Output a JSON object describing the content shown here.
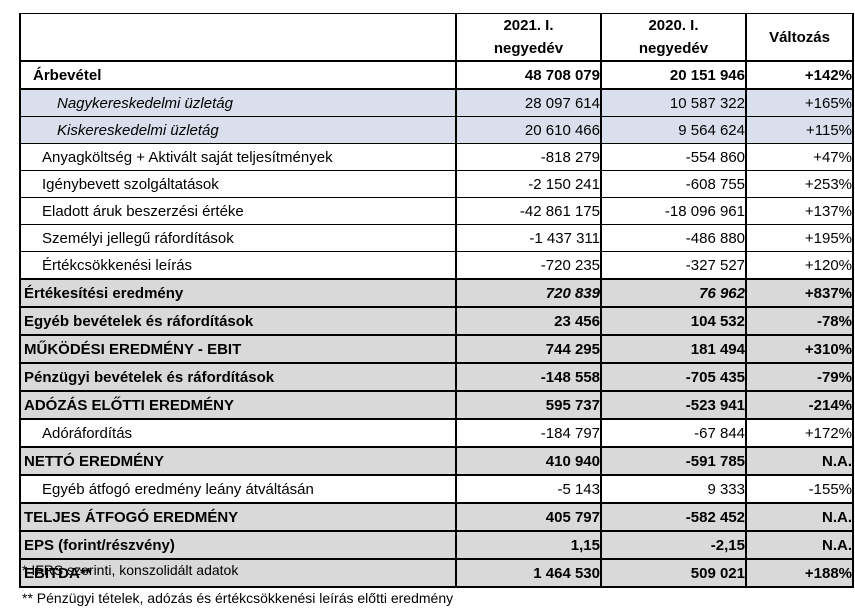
{
  "table": {
    "header": {
      "col_2021": {
        "line1": "2021. I.",
        "line2": "negyedév"
      },
      "col_2020": {
        "line1": "2020. I.",
        "line2": "negyedév"
      },
      "col_change": "Változás"
    },
    "rows": [
      {
        "label": "Árbevétel",
        "q1_2021": "48 708 079",
        "q1_2020": "20 151 946",
        "change": "+142%"
      },
      {
        "label": "Nagykereskedelmi üzletág",
        "q1_2021": "28 097 614",
        "q1_2020": "10 587 322",
        "change": "+165%"
      },
      {
        "label": "Kiskereskedelmi üzletág",
        "q1_2021": "20 610 466",
        "q1_2020": "9 564 624",
        "change": "+115%"
      },
      {
        "label": "Anyagköltség + Aktivált saját teljesítmények",
        "q1_2021": "-818 279",
        "q1_2020": "-554 860",
        "change": "+47%"
      },
      {
        "label": "Igénybevett szolgáltatások",
        "q1_2021": "-2 150 241",
        "q1_2020": "-608 755",
        "change": "+253%"
      },
      {
        "label": "Eladott áruk beszerzési értéke",
        "q1_2021": "-42 861 175",
        "q1_2020": "-18 096 961",
        "change": "+137%"
      },
      {
        "label": "Személyi jellegű ráfordítások",
        "q1_2021": "-1 437 311",
        "q1_2020": "-486 880",
        "change": "+195%"
      },
      {
        "label": "Értékcsökkenési leírás",
        "q1_2021": "-720 235",
        "q1_2020": "-327 527",
        "change": "+120%"
      },
      {
        "label": "Értékesítési eredmény",
        "q1_2021": "720 839",
        "q1_2020": "76 962",
        "change": "+837%"
      },
      {
        "label": "Egyéb bevételek és ráfordítások",
        "q1_2021": "23 456",
        "q1_2020": "104 532",
        "change": "-78%"
      },
      {
        "label": "MŰKÖDÉSI EREDMÉNY - EBIT",
        "q1_2021": "744 295",
        "q1_2020": "181 494",
        "change": "+310%"
      },
      {
        "label": "Pénzügyi bevételek és ráfordítások",
        "q1_2021": "-148 558",
        "q1_2020": "-705 435",
        "change": "-79%"
      },
      {
        "label": "ADÓZÁS ELŐTTI EREDMÉNY",
        "q1_2021": "595 737",
        "q1_2020": "-523 941",
        "change": "-214%"
      },
      {
        "label": "Adóráfordítás",
        "q1_2021": "-184 797",
        "q1_2020": "-67 844",
        "change": "+172%"
      },
      {
        "label": "NETTÓ EREDMÉNY",
        "q1_2021": "410 940",
        "q1_2020": "-591 785",
        "change": "N.A."
      },
      {
        "label": "Egyéb átfogó eredmény leány átváltásán",
        "q1_2021": "-5 143",
        "q1_2020": "9 333",
        "change": "-155%"
      },
      {
        "label": "TELJES ÁTFOGÓ EREDMÉNY",
        "q1_2021": "405 797",
        "q1_2020": "-582 452",
        "change": "N.A."
      },
      {
        "label": "EPS (forint/részvény)",
        "q1_2021": "1,15",
        "q1_2020": "-2,15",
        "change": "N.A."
      },
      {
        "label": "EBITDA**",
        "q1_2021": "1 464 530",
        "q1_2020": "509 021",
        "change": "+188%"
      }
    ]
  },
  "footnotes": [
    "* IFRS szerinti, konszolidált adatok",
    "** Pénzügyi tételek, adózás és értékcsökkenési leírás előtti eredmény"
  ],
  "colors": {
    "segment_row_bg": "#d9dfed",
    "summary_row_bg": "#d9d9d9",
    "border": "#000000",
    "text": "#000000"
  }
}
